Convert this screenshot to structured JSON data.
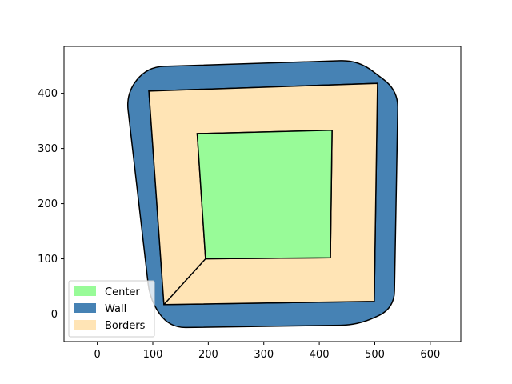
{
  "chart_data": {
    "type": "area",
    "title": "",
    "xlabel": "",
    "ylabel": "",
    "xlim": [
      -60,
      655
    ],
    "ylim": [
      -50,
      485
    ],
    "x_ticks": [
      0,
      100,
      200,
      300,
      400,
      500,
      600
    ],
    "y_ticks": [
      0,
      100,
      200,
      300,
      400
    ],
    "grid": false,
    "legend_placement": "lower-left",
    "series": [
      {
        "name": "Center",
        "color": "#98FB98",
        "polygon": [
          [
            195,
            100
          ],
          [
            420,
            102
          ],
          [
            423,
            333
          ],
          [
            180,
            327
          ]
        ]
      },
      {
        "name": "Wall",
        "color": "#4682B4",
        "polygon_outer": [
          [
            90,
            448
          ],
          [
            470,
            460
          ],
          [
            542,
            405
          ],
          [
            535,
            10
          ],
          [
            470,
            -20
          ],
          [
            130,
            -25
          ],
          [
            95,
            25
          ],
          [
            52,
            400
          ]
        ],
        "polygon_inner": [
          [
            93,
            404
          ],
          [
            505,
            418
          ],
          [
            499,
            23
          ],
          [
            120,
            17
          ]
        ]
      },
      {
        "name": "Borders",
        "color": "#FFE4B5",
        "polygon_outer": [
          [
            93,
            404
          ],
          [
            505,
            418
          ],
          [
            499,
            23
          ],
          [
            120,
            17
          ]
        ],
        "polygon_inner": [
          [
            195,
            100
          ],
          [
            420,
            102
          ],
          [
            423,
            333
          ],
          [
            180,
            327
          ]
        ]
      }
    ],
    "legend": [
      {
        "label": "Center",
        "color": "#98FB98"
      },
      {
        "label": "Wall",
        "color": "#4682B4"
      },
      {
        "label": "Borders",
        "color": "#FFE4B5"
      }
    ]
  }
}
